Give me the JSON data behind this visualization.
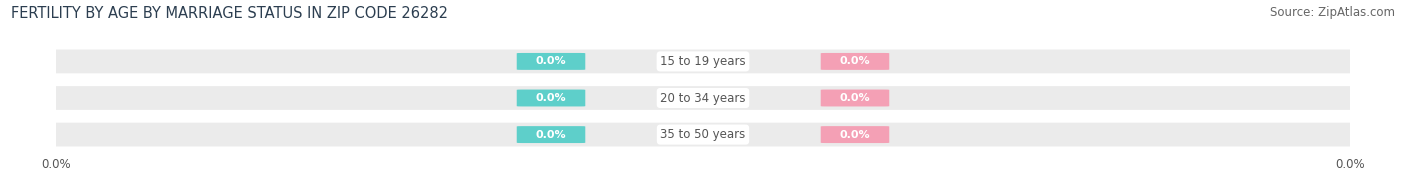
{
  "title": "FERTILITY BY AGE BY MARRIAGE STATUS IN ZIP CODE 26282",
  "source": "Source: ZipAtlas.com",
  "categories": [
    "15 to 19 years",
    "20 to 34 years",
    "35 to 50 years"
  ],
  "married_values": [
    0.0,
    0.0,
    0.0
  ],
  "unmarried_values": [
    0.0,
    0.0,
    0.0
  ],
  "married_color": "#5ECFCA",
  "unmarried_color": "#F4A0B5",
  "bar_bg_color": "#EBEBEB",
  "bar_height": 0.62,
  "title_fontsize": 10.5,
  "source_fontsize": 8.5,
  "label_fontsize": 8,
  "tick_fontsize": 8.5,
  "legend_fontsize": 9,
  "background_color": "#FFFFFF",
  "value_text_color": "#FFFFFF",
  "category_text_color": "#555555"
}
